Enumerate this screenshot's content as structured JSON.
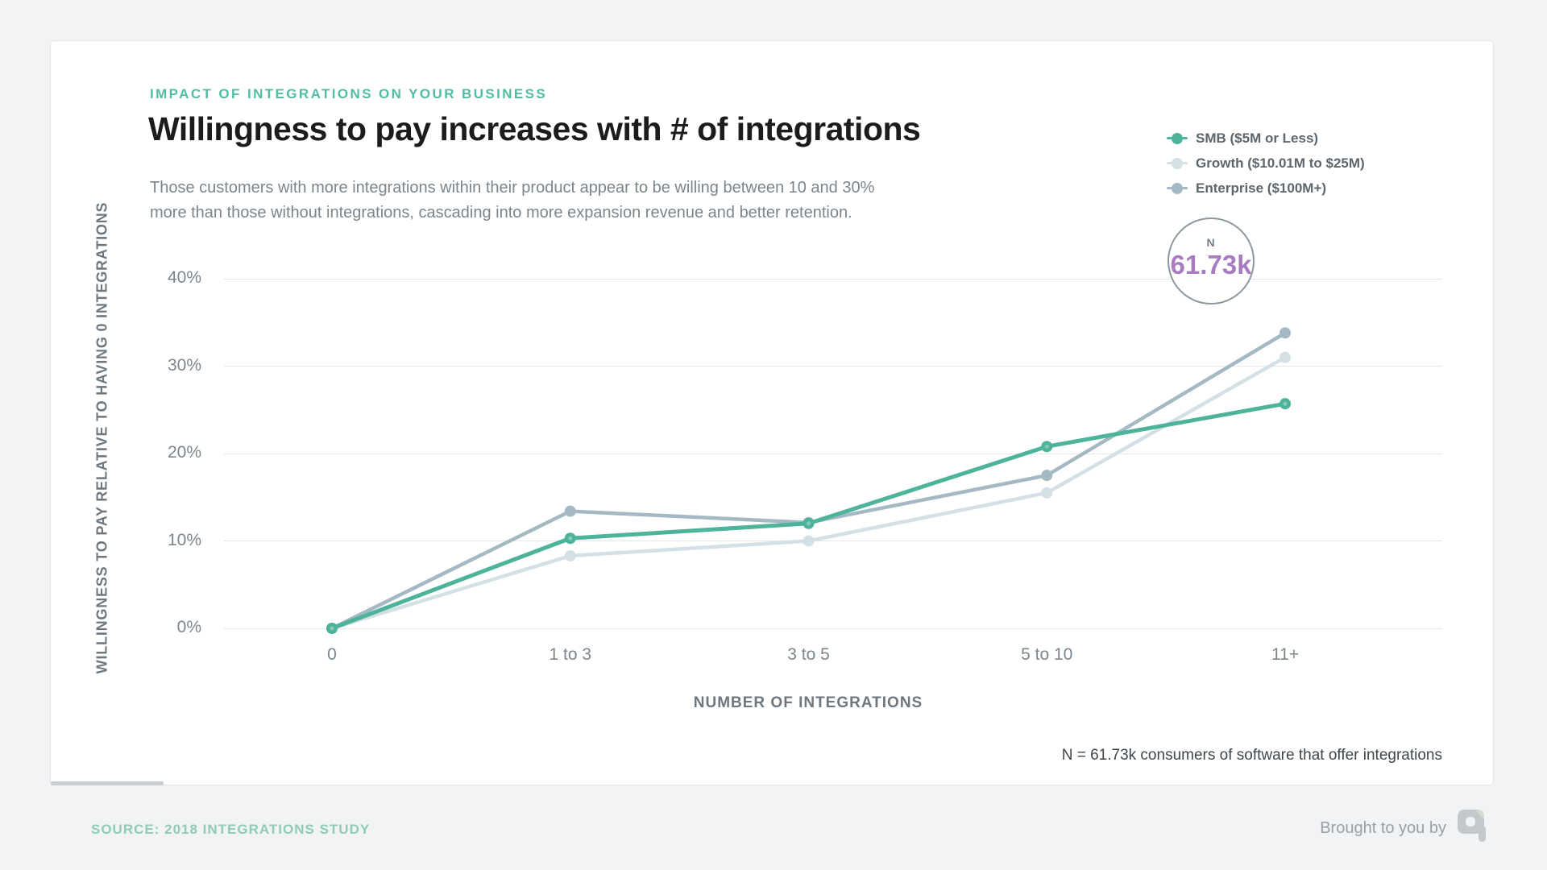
{
  "header": {
    "kicker": "IMPACT OF INTEGRATIONS ON YOUR BUSINESS",
    "title": "Willingness to pay increases with # of integrations",
    "subtitle_line1": "Those customers with more integrations within their product appear to be willing between 10 and 30%",
    "subtitle_line2": "more than those without integrations, cascading into more expansion revenue and better retention."
  },
  "legend": {
    "items": [
      {
        "label": "SMB ($5M or Less)",
        "color": "#4db39a"
      },
      {
        "label": "Growth ($10.01M to $25M)",
        "color": "#d3e0e6"
      },
      {
        "label": "Enterprise ($100M+)",
        "color": "#a4b9c3"
      }
    ]
  },
  "sample_badge": {
    "label": "N",
    "value": "61.73k",
    "value_color": "#a77cc1",
    "border_color": "#8d979e"
  },
  "chart_data": {
    "type": "line",
    "categories": [
      "0",
      "1 to 3",
      "3 to 5",
      "5 to 10",
      "11+"
    ],
    "series": [
      {
        "name": "Enterprise ($100M+)",
        "color": "#a4b9c3",
        "values": [
          0,
          13.4,
          12.1,
          17.5,
          33.8
        ]
      },
      {
        "name": "Growth ($10.01M to $25M)",
        "color": "#d3e0e6",
        "values": [
          0,
          8.3,
          10,
          15.5,
          31
        ]
      },
      {
        "name": "SMB ($5M or Less)",
        "color": "#4db39a",
        "inner_dot": "#7fcdb9",
        "values": [
          0,
          10.3,
          12,
          20.8,
          25.7
        ]
      }
    ],
    "title": "Willingness to pay increases with # of integrations",
    "xlabel": "NUMBER OF INTEGRATIONS",
    "ylabel": "WILLINGNESS TO PAY RELATIVE TO HAVING 0 INTEGRATIONS",
    "y_ticks": [
      "40%",
      "30%",
      "20%",
      "10%",
      "0%"
    ],
    "ylim": [
      0,
      40
    ],
    "grid": true,
    "legend_position": "top-right",
    "gridline_color": "#e5e7e9"
  },
  "note": "N = 61.73k consumers of software that offer integrations",
  "footer": {
    "source": "SOURCE: 2018 INTEGRATIONS STUDY",
    "brought_by": "Brought to you by"
  }
}
